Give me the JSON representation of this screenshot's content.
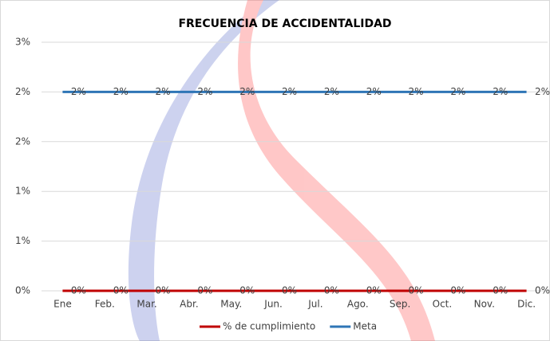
{
  "chart_data": {
    "type": "line",
    "title": "FRECUENCIA DE ACCIDENTALIDAD",
    "categories": [
      "Ene",
      "Feb.",
      "Mar.",
      "Abr.",
      "May.",
      "Jun.",
      "Jul.",
      "Ago.",
      "Sep.",
      "Oct.",
      "Nov.",
      "Dic."
    ],
    "series": [
      {
        "name": "% de cumplimiento",
        "color": "#c00000",
        "values": [
          0,
          0,
          0,
          0,
          0,
          0,
          0,
          0,
          0,
          0,
          0,
          0
        ],
        "value_labels": [
          "0%",
          "0%",
          "0%",
          "0%",
          "0%",
          "0%",
          "0%",
          "0%",
          "0%",
          "0%",
          "0%",
          "0%"
        ]
      },
      {
        "name": "Meta",
        "color": "#2e75b6",
        "values": [
          2,
          2,
          2,
          2,
          2,
          2,
          2,
          2,
          2,
          2,
          2,
          2
        ],
        "value_labels": [
          "2%",
          "2%",
          "2%",
          "2%",
          "2%",
          "2%",
          "2%",
          "2%",
          "2%",
          "2%",
          "2%",
          "2%"
        ]
      }
    ],
    "ylim": [
      0,
      2.5
    ],
    "yticks": [
      {
        "value": 0,
        "label": "0%"
      },
      {
        "value": 0.5,
        "label": "1%"
      },
      {
        "value": 1,
        "label": "1%"
      },
      {
        "value": 1.5,
        "label": "2%"
      },
      {
        "value": 2,
        "label": "2%"
      },
      {
        "value": 2.5,
        "label": "3%"
      }
    ],
    "grid": true,
    "legend": "bottom"
  }
}
